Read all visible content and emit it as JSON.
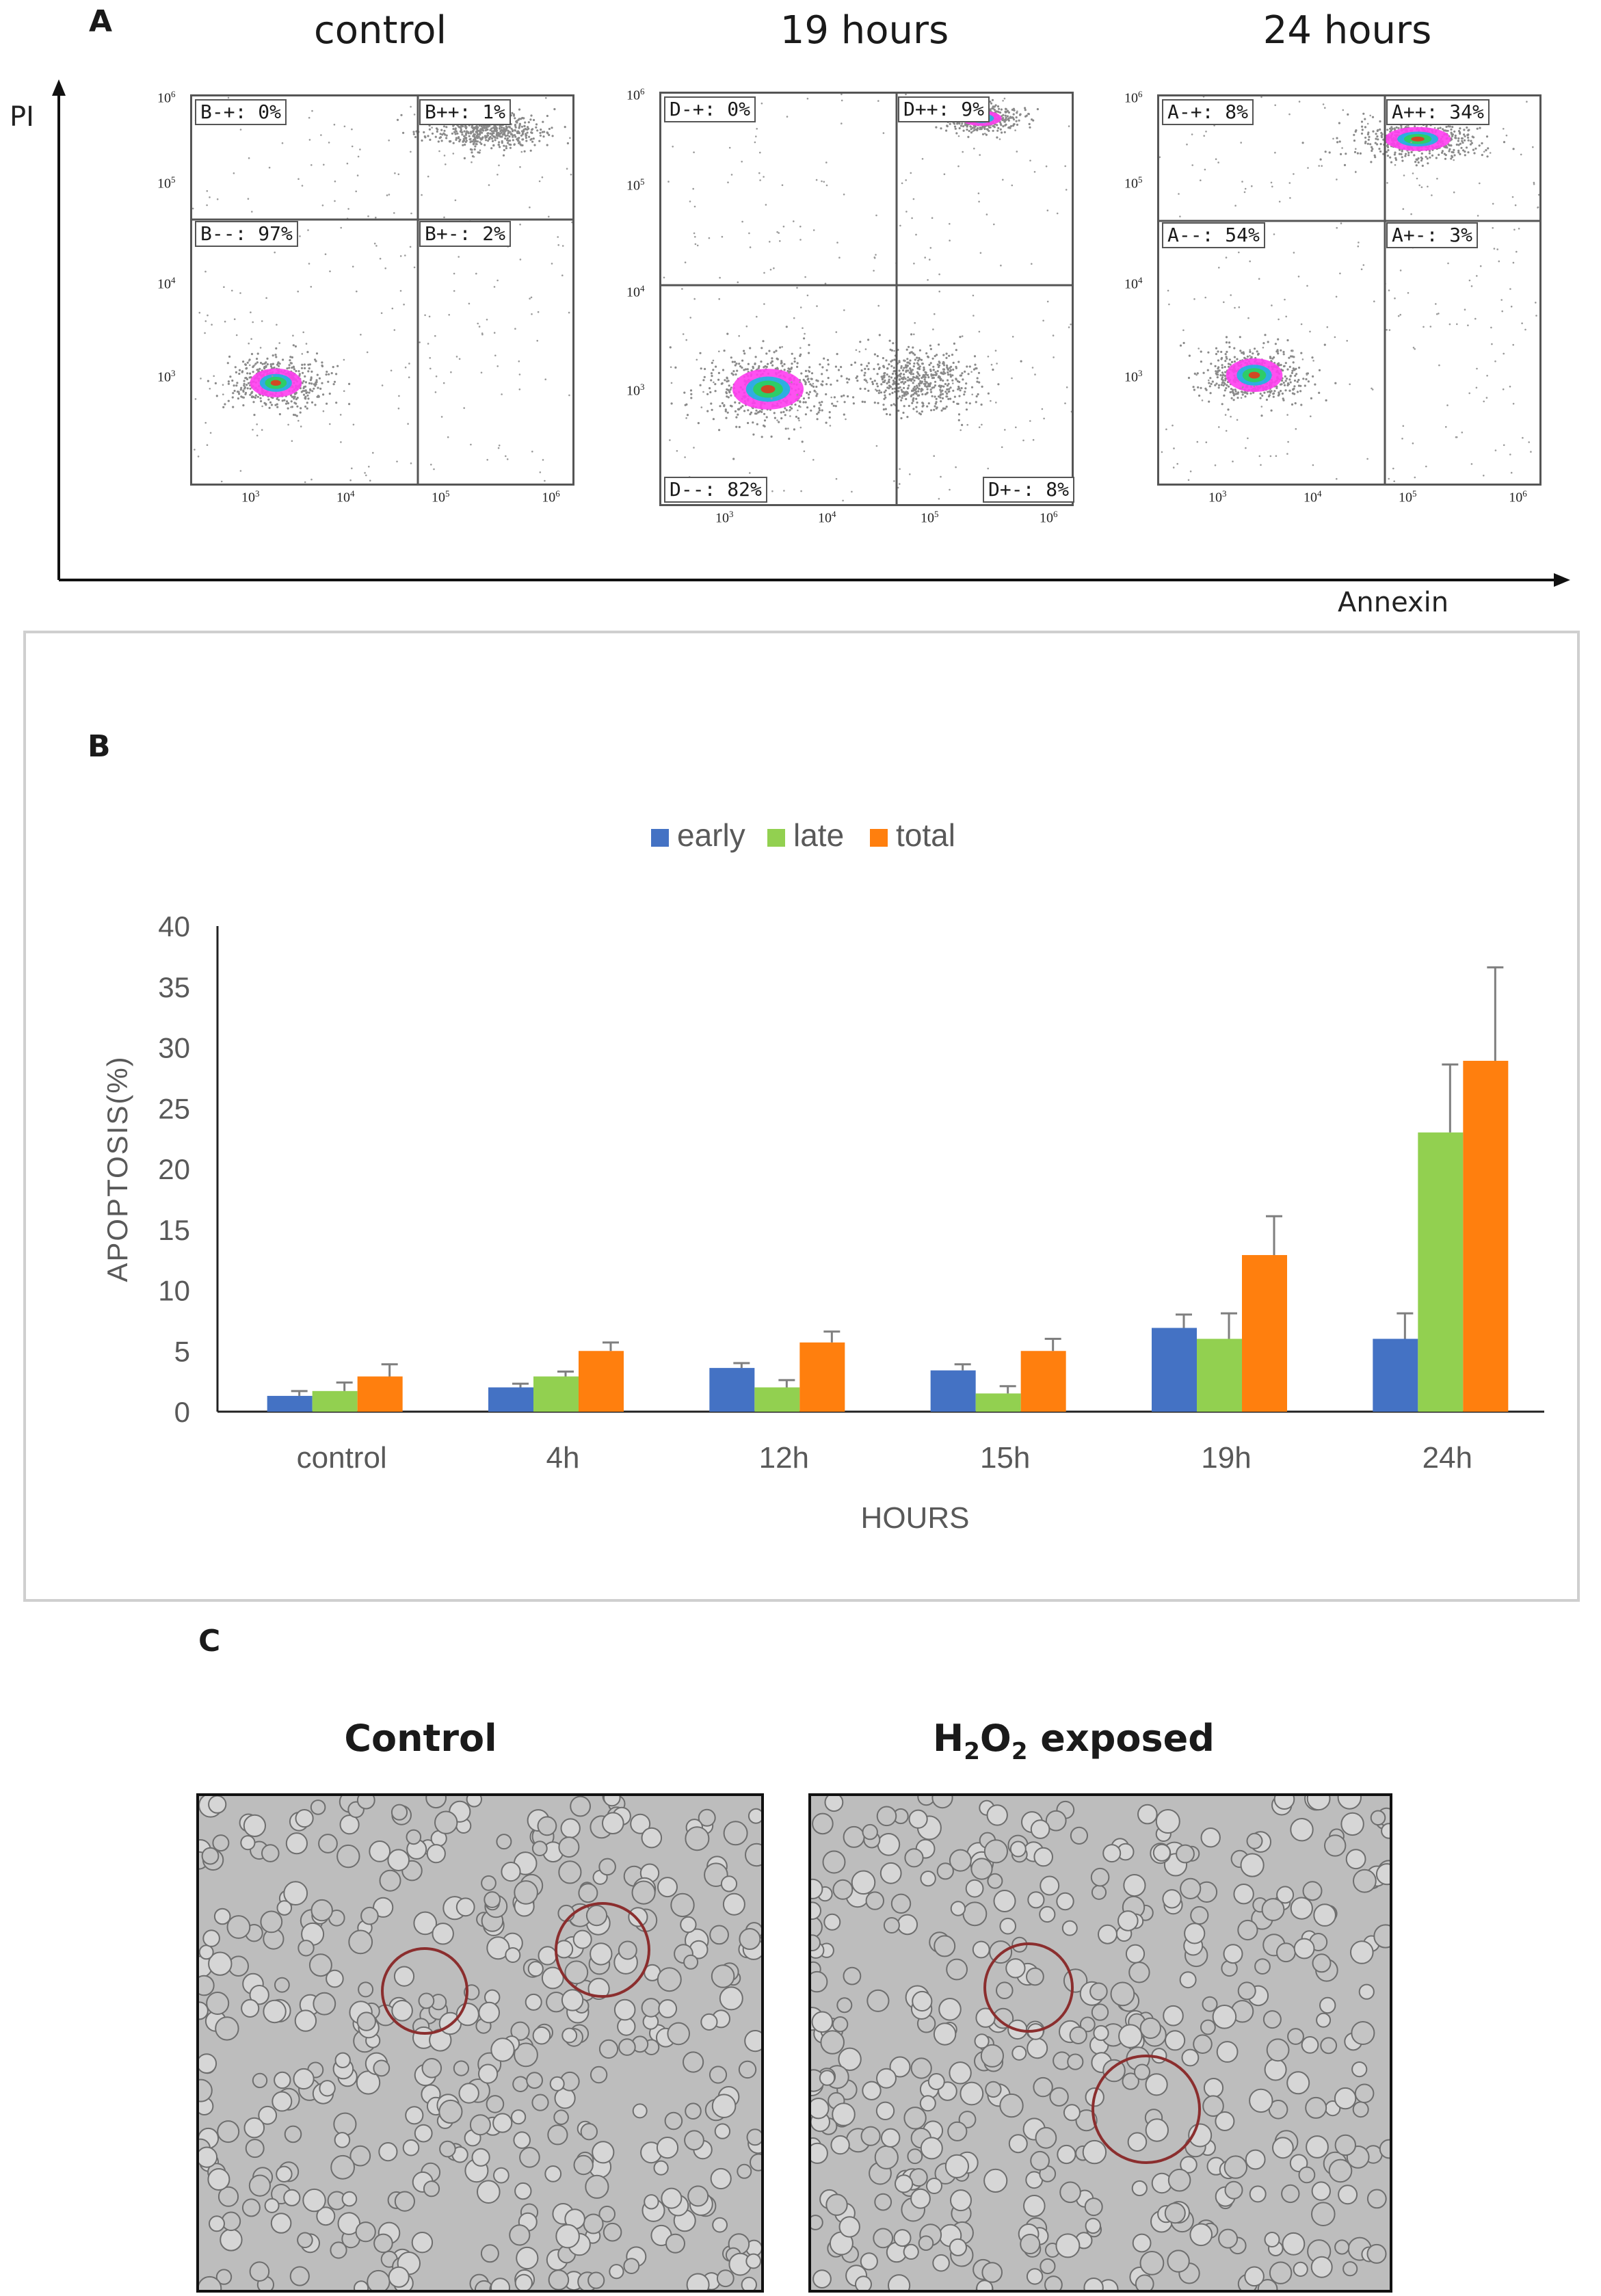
{
  "panelA": {
    "letter": "A",
    "y_axis_label": "PI",
    "x_axis_label": "Annexin",
    "plots": [
      {
        "title": "control",
        "quadrants": {
          "ul": "B-+: 0%",
          "ur": "B++: 1%",
          "ll": "B--: 97%",
          "lr": "B+-: 2%"
        },
        "y_ticks": [
          "10",
          "10",
          "10",
          "10"
        ],
        "y_exps": [
          "6",
          "5",
          "4",
          "3"
        ],
        "x_ticks": [
          "10",
          "10",
          "10",
          "10"
        ],
        "x_exps": [
          "3",
          "4",
          "5",
          "6"
        ]
      },
      {
        "title": "19 hours",
        "quadrants": {
          "ul": "D-+: 0%",
          "ur": "D++: 9%",
          "ll": "D--: 82%",
          "lr": "D+-: 8%"
        },
        "y_ticks": [
          "10",
          "10",
          "10",
          "10"
        ],
        "y_exps": [
          "6",
          "5",
          "4",
          "3"
        ],
        "x_ticks": [
          "10",
          "10",
          "10",
          "10"
        ],
        "x_exps": [
          "3",
          "4",
          "5",
          "6"
        ]
      },
      {
        "title": "24 hours",
        "quadrants": {
          "ul": "A-+: 8%",
          "ur": "A++: 34%",
          "ll": "A--: 54%",
          "lr": "A+-: 3%"
        },
        "y_ticks": [
          "10",
          "10",
          "10",
          "10"
        ],
        "y_exps": [
          "6",
          "5",
          "4",
          "3"
        ],
        "x_ticks": [
          "10",
          "10",
          "10",
          "10"
        ],
        "x_exps": [
          "3",
          "4",
          "5",
          "6"
        ]
      }
    ]
  },
  "panelB": {
    "letter": "B"
  },
  "panelC": {
    "letter": "C",
    "photos": [
      {
        "title": "Control"
      },
      {
        "title_main": "H",
        "title_sub1": "2",
        "title_mid": "O",
        "title_sub2": "2",
        "title_tail": " exposed"
      }
    ]
  },
  "colors": {
    "early": "#4472c4",
    "late": "#92d050",
    "total": "#ff7f0e",
    "axis": "#555555",
    "gate_circle": "#8b2e2e"
  },
  "chart_data": {
    "type": "bar",
    "title": "",
    "xlabel": "HOURS",
    "ylabel": "APOPTOSIS(%)",
    "ylim": [
      0,
      40
    ],
    "yticks": [
      "0",
      "5",
      "10",
      "15",
      "20",
      "25",
      "30",
      "35",
      "40"
    ],
    "ytick_values": [
      0,
      5,
      10,
      15,
      20,
      25,
      30,
      35,
      40
    ],
    "categories": [
      "control",
      "4h",
      "12h",
      "15h",
      "19h",
      "24h"
    ],
    "legend": "top-center",
    "series": [
      {
        "name": "early",
        "values": [
          1.3,
          2.0,
          3.6,
          3.4,
          6.9,
          6.0
        ],
        "errors": [
          0.4,
          0.3,
          0.4,
          0.5,
          1.1,
          2.1
        ]
      },
      {
        "name": "late",
        "values": [
          1.7,
          2.9,
          2.0,
          1.5,
          6.0,
          23.0
        ],
        "errors": [
          0.7,
          0.4,
          0.6,
          0.6,
          2.1,
          5.6
        ]
      },
      {
        "name": "total",
        "values": [
          2.9,
          5.0,
          5.7,
          5.0,
          12.9,
          28.9
        ],
        "errors": [
          1.0,
          0.7,
          0.9,
          1.0,
          3.2,
          7.7
        ]
      }
    ]
  }
}
